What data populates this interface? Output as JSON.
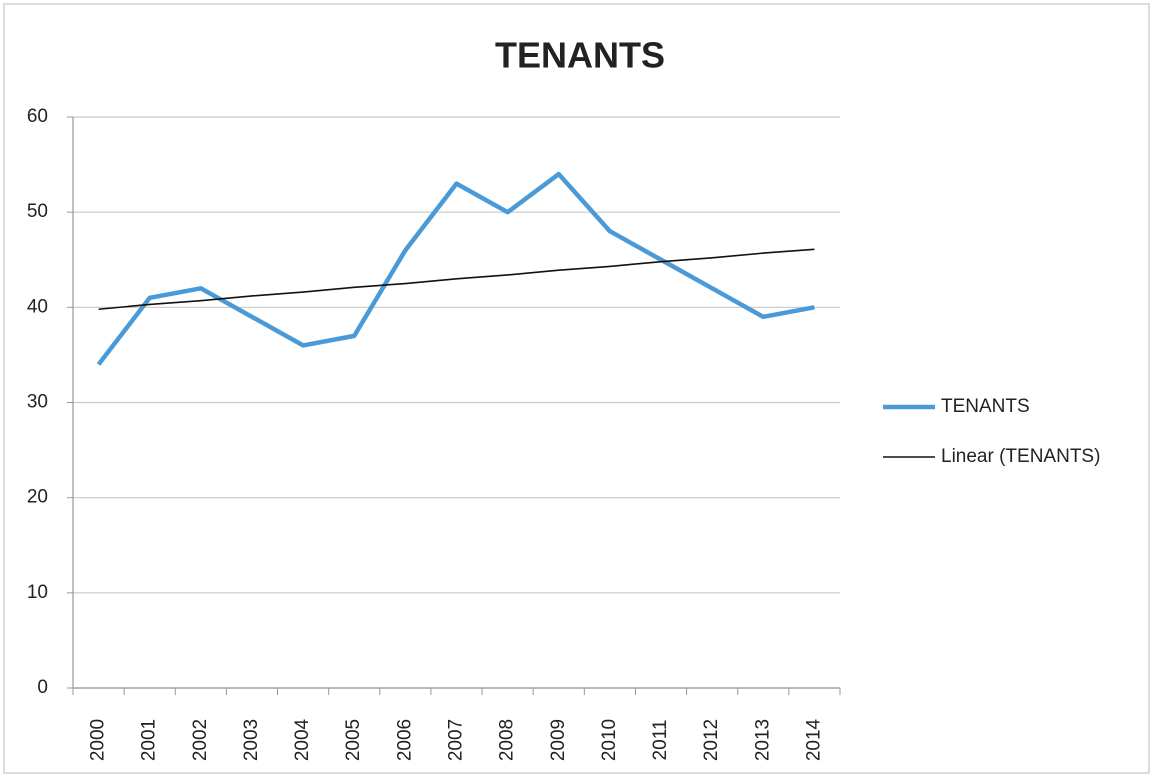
{
  "chart_data": {
    "type": "line",
    "title": "TENANTS",
    "categories": [
      "2000",
      "2001",
      "2002",
      "2003",
      "2004",
      "2005",
      "2006",
      "2007",
      "2008",
      "2009",
      "2010",
      "2011",
      "2012",
      "2013",
      "2014"
    ],
    "series": [
      {
        "name": "TENANTS",
        "color": "#4a9ad8",
        "values": [
          34,
          41,
          42,
          39,
          36,
          37,
          46,
          53,
          50,
          54,
          48,
          45,
          42,
          39,
          40
        ]
      },
      {
        "name": "Linear (TENANTS)",
        "color": "#111111",
        "values": [
          39.8,
          40.3,
          40.7,
          41.2,
          41.6,
          42.1,
          42.5,
          43.0,
          43.4,
          43.9,
          44.3,
          44.8,
          45.2,
          45.7,
          46.1
        ]
      }
    ],
    "ylim": [
      0,
      60
    ],
    "yticks": [
      0,
      10,
      20,
      30,
      40,
      50,
      60
    ],
    "grid": true,
    "legend": "right"
  }
}
